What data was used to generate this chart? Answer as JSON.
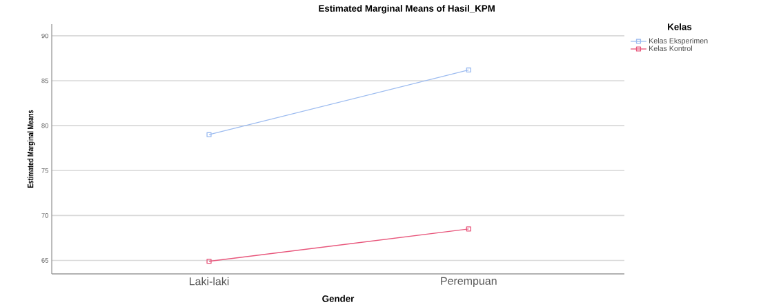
{
  "chart_data": {
    "type": "line",
    "title": "Estimated Marginal Means of Hasil_KPM",
    "xlabel": "Gender",
    "ylabel": "Estimated Marginal Means",
    "legend_title": "Kelas",
    "categories": [
      "Laki-laki",
      "Perempuan"
    ],
    "series": [
      {
        "name": "Kelas Eksperimen",
        "color": "#9dbcf0",
        "values": [
          79.0,
          86.2
        ]
      },
      {
        "name": "Kelas Kontrol",
        "color": "#e8577c",
        "values": [
          64.9,
          68.5
        ]
      }
    ],
    "ylim": [
      63.5,
      91.3
    ],
    "yticks": [
      65,
      70,
      75,
      80,
      85,
      90
    ],
    "grid": "y",
    "legend": "top right",
    "marker": "square",
    "line_style": "solid"
  }
}
